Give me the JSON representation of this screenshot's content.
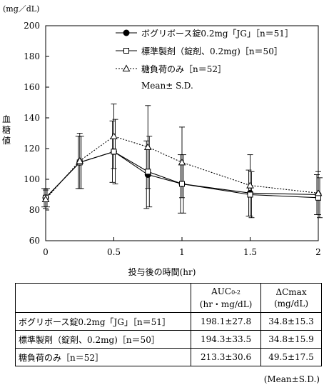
{
  "chart_data": {
    "type": "line",
    "ylabel_unit": "(mg／dL)",
    "ylabel": "血糖値",
    "xlabel": "投与後の時間(hr)",
    "xlim": [
      0,
      2
    ],
    "ylim": [
      60,
      200
    ],
    "xticks": [
      0,
      0.5,
      1,
      1.5,
      2
    ],
    "xtick_labels": [
      "0",
      "0.5",
      "1",
      "1.5",
      "2"
    ],
    "yticks": [
      60,
      80,
      100,
      120,
      140,
      160,
      180,
      200
    ],
    "x": [
      0,
      0.25,
      0.5,
      0.75,
      1,
      1.5,
      2
    ],
    "series": [
      {
        "name": "ボグリボース錠0.2mg「JG」［n＝51］",
        "marker": "filled-circle",
        "line": "solid",
        "values": [
          88,
          111,
          118,
          103,
          97,
          91,
          90
        ],
        "errors": [
          6,
          17,
          20,
          22,
          19,
          15,
          13
        ]
      },
      {
        "name": "標準製剤（錠剤、0.2mg)［n＝50］",
        "marker": "open-square",
        "line": "solid",
        "values": [
          88,
          111,
          118,
          105,
          97,
          90,
          88
        ],
        "errors": [
          6,
          17,
          21,
          23,
          19,
          15,
          13
        ]
      },
      {
        "name": "糖負荷のみ［n＝52］",
        "marker": "open-triangle",
        "line": "dotted",
        "values": [
          87,
          112,
          128,
          121,
          111,
          96,
          91
        ],
        "errors": [
          6,
          18,
          21,
          27,
          23,
          20,
          14
        ]
      }
    ],
    "legend_note": "Mean± S.D.",
    "legend_position": "top-right"
  },
  "table": {
    "headers": [
      "",
      "AUC",
      "0-2",
      "(hr・mg/dL)",
      "ΔCmax",
      "(mg/dL)"
    ],
    "rows": [
      [
        "ボグリボース錠0.2mg「JG」［n＝51］",
        "198.1±27.8",
        "34.8±15.3"
      ],
      [
        "標準製剤（錠剤、0.2mg)［n＝50］",
        "194.3±33.5",
        "34.8±15.9"
      ],
      [
        "糖負荷のみ［n＝52］",
        "213.3±30.6",
        "49.5±17.5"
      ]
    ],
    "footnote": "(Mean±S.D.)"
  }
}
